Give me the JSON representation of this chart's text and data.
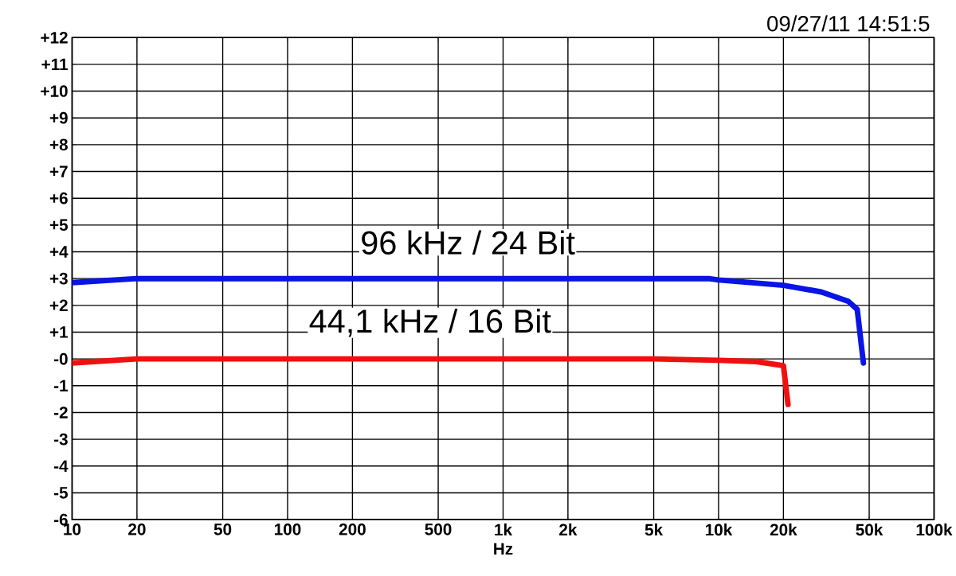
{
  "chart_data": {
    "type": "line",
    "xlabel": "Hz",
    "log": "x",
    "grid": true,
    "annotations": [
      "09/27/11 14:51:5"
    ],
    "xlim": [
      10,
      100000
    ],
    "ylim": [
      -6,
      12
    ],
    "xticks": [
      10,
      20,
      50,
      100,
      200,
      500,
      {
        "value": 1000,
        "label": "1k"
      },
      {
        "value": 2000,
        "label": "2k"
      },
      {
        "value": 5000,
        "label": "5k"
      },
      {
        "value": 10000,
        "label": "10k"
      },
      {
        "value": 20000,
        "label": "20k"
      },
      {
        "value": 50000,
        "label": "50k"
      },
      {
        "value": 100000,
        "label": "100k"
      }
    ],
    "yticks": [
      {
        "value": -6,
        "label": "-6"
      },
      {
        "value": -5,
        "label": "-5"
      },
      {
        "value": -4,
        "label": "-4"
      },
      {
        "value": -3,
        "label": "-3"
      },
      {
        "value": -2,
        "label": "-2"
      },
      {
        "value": -1,
        "label": "-1"
      },
      {
        "value": 0,
        "label": "-0"
      },
      {
        "value": 1,
        "label": "+1"
      },
      {
        "value": 2,
        "label": "+2"
      },
      {
        "value": 3,
        "label": "+3"
      },
      {
        "value": 4,
        "label": "+4"
      },
      {
        "value": 5,
        "label": "+5"
      },
      {
        "value": 6,
        "label": "+6"
      },
      {
        "value": 7,
        "label": "+7"
      },
      {
        "value": 8,
        "label": "+8"
      },
      {
        "value": 9,
        "label": "+9"
      },
      {
        "value": 10,
        "label": "+10"
      },
      {
        "value": 11,
        "label": "+11"
      },
      {
        "value": 12,
        "label": "+12"
      }
    ],
    "series": [
      {
        "name": "96 kHz / 24 Bit",
        "color": "#0a14e6",
        "x": [
          10,
          20,
          100,
          1000,
          5000,
          9000,
          10000,
          20000,
          30000,
          40000,
          44000,
          47000
        ],
        "values": [
          2.85,
          3.0,
          3.0,
          3.0,
          3.0,
          3.0,
          2.95,
          2.75,
          2.5,
          2.15,
          1.85,
          -0.15
        ]
      },
      {
        "name": "44,1 kHz / 16 Bit",
        "color": "#f01010",
        "x": [
          10,
          20,
          100,
          1000,
          5000,
          10000,
          15000,
          20000,
          21000
        ],
        "values": [
          -0.15,
          0.0,
          0.0,
          0.0,
          0.0,
          -0.05,
          -0.1,
          -0.25,
          -1.7
        ]
      }
    ]
  }
}
